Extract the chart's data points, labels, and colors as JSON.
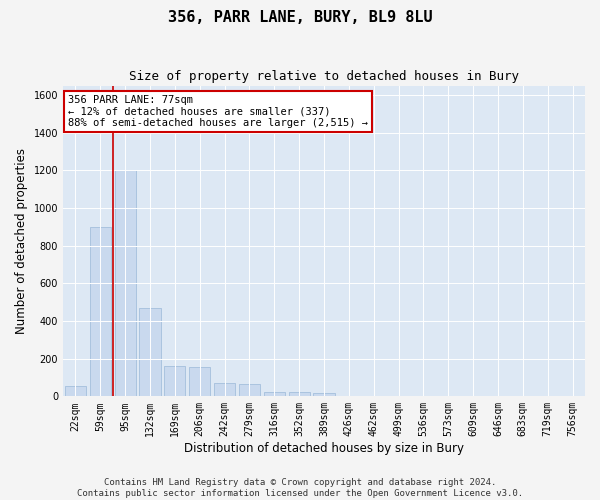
{
  "title": "356, PARR LANE, BURY, BL9 8LU",
  "subtitle": "Size of property relative to detached houses in Bury",
  "xlabel": "Distribution of detached houses by size in Bury",
  "ylabel": "Number of detached properties",
  "footer_line1": "Contains HM Land Registry data © Crown copyright and database right 2024.",
  "footer_line2": "Contains public sector information licensed under the Open Government Licence v3.0.",
  "annotation_line1": "356 PARR LANE: 77sqm",
  "annotation_line2": "← 12% of detached houses are smaller (337)",
  "annotation_line3": "88% of semi-detached houses are larger (2,515) →",
  "bar_color": "#c9d9ee",
  "bar_edge_color": "#9ab8d8",
  "vline_color": "#cc0000",
  "annotation_box_facecolor": "#ffffff",
  "annotation_box_edgecolor": "#cc0000",
  "background_color": "#dde8f4",
  "fig_facecolor": "#f4f4f4",
  "categories": [
    "22sqm",
    "59sqm",
    "95sqm",
    "132sqm",
    "169sqm",
    "206sqm",
    "242sqm",
    "279sqm",
    "316sqm",
    "352sqm",
    "389sqm",
    "426sqm",
    "462sqm",
    "499sqm",
    "536sqm",
    "573sqm",
    "609sqm",
    "646sqm",
    "683sqm",
    "719sqm",
    "756sqm"
  ],
  "values": [
    55,
    900,
    1200,
    470,
    160,
    155,
    70,
    65,
    25,
    25,
    20,
    0,
    0,
    0,
    0,
    0,
    0,
    0,
    0,
    0,
    0
  ],
  "ylim": [
    0,
    1650
  ],
  "yticks": [
    0,
    200,
    400,
    600,
    800,
    1000,
    1200,
    1400,
    1600
  ],
  "grid_color": "#ffffff",
  "title_fontsize": 11,
  "subtitle_fontsize": 9,
  "axis_label_fontsize": 8.5,
  "tick_fontsize": 7,
  "annotation_fontsize": 7.5,
  "footer_fontsize": 6.5,
  "vline_x_index": 1.5
}
